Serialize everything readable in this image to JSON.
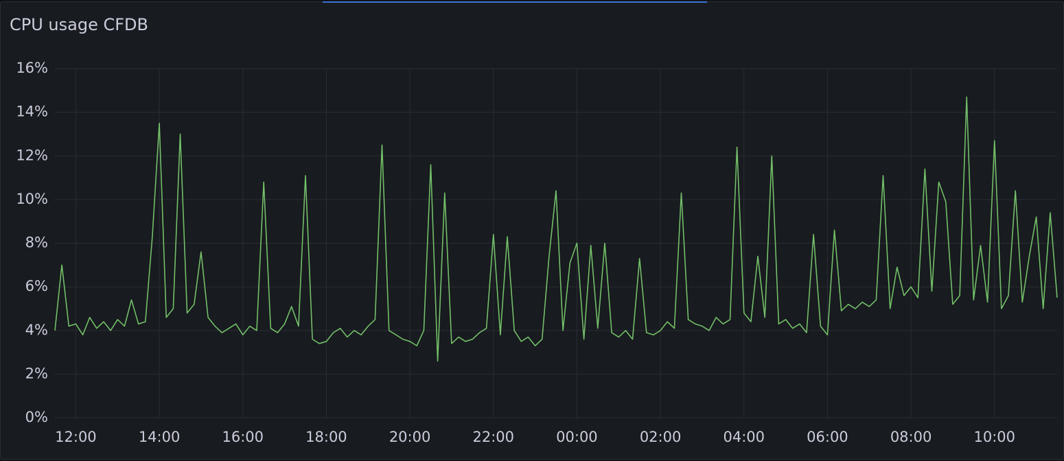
{
  "chart_data": {
    "type": "line",
    "title": "CPU usage CFDB",
    "x": [
      "11:30",
      "11:40",
      "11:50",
      "12:00",
      "12:10",
      "12:20",
      "12:30",
      "12:40",
      "12:50",
      "13:00",
      "13:10",
      "13:20",
      "13:30",
      "13:40",
      "13:50",
      "14:00",
      "14:10",
      "14:20",
      "14:30",
      "14:40",
      "14:50",
      "15:00",
      "15:10",
      "15:20",
      "15:30",
      "15:40",
      "15:50",
      "16:00",
      "16:10",
      "16:20",
      "16:30",
      "16:40",
      "16:50",
      "17:00",
      "17:10",
      "17:20",
      "17:30",
      "17:40",
      "17:50",
      "18:00",
      "18:10",
      "18:20",
      "18:30",
      "18:40",
      "18:50",
      "19:00",
      "19:10",
      "19:20",
      "19:30",
      "19:40",
      "19:50",
      "20:00",
      "20:10",
      "20:20",
      "20:30",
      "20:40",
      "20:50",
      "21:00",
      "21:10",
      "21:20",
      "21:30",
      "21:40",
      "21:50",
      "22:00",
      "22:10",
      "22:20",
      "22:30",
      "22:40",
      "22:50",
      "23:00",
      "23:10",
      "23:20",
      "23:30",
      "23:40",
      "23:50",
      "00:00",
      "00:10",
      "00:20",
      "00:30",
      "00:40",
      "00:50",
      "01:00",
      "01:10",
      "01:20",
      "01:30",
      "01:40",
      "01:50",
      "02:00",
      "02:10",
      "02:20",
      "02:30",
      "02:40",
      "02:50",
      "03:00",
      "03:10",
      "03:20",
      "03:30",
      "03:40",
      "03:50",
      "04:00",
      "04:10",
      "04:20",
      "04:30",
      "04:40",
      "04:50",
      "05:00",
      "05:10",
      "05:20",
      "05:30",
      "05:40",
      "05:50",
      "06:00",
      "06:10",
      "06:20",
      "06:30",
      "06:40",
      "06:50",
      "07:00",
      "07:10",
      "07:20",
      "07:30",
      "07:40",
      "07:50",
      "08:00",
      "08:10",
      "08:20",
      "08:30",
      "08:40",
      "08:50",
      "09:00",
      "09:10",
      "09:20",
      "09:30",
      "09:40",
      "09:50",
      "10:00",
      "10:10",
      "10:20",
      "10:30",
      "10:40",
      "10:50",
      "11:00",
      "11:10",
      "11:20",
      "11:30"
    ],
    "series": [
      {
        "name": "CPU usage",
        "color": "#73bf69",
        "values": [
          4.0,
          7.0,
          4.2,
          4.3,
          3.8,
          4.6,
          4.1,
          4.4,
          4.0,
          4.5,
          4.2,
          5.4,
          4.3,
          4.4,
          8.3,
          13.5,
          4.6,
          5.0,
          13.0,
          4.8,
          5.2,
          7.6,
          4.6,
          4.2,
          3.9,
          4.1,
          4.3,
          3.8,
          4.2,
          4.0,
          10.8,
          4.1,
          3.9,
          4.3,
          5.1,
          4.2,
          11.1,
          3.6,
          3.4,
          3.5,
          3.9,
          4.1,
          3.7,
          4.0,
          3.8,
          4.2,
          4.5,
          12.5,
          4.0,
          3.8,
          3.6,
          3.5,
          3.3,
          4.0,
          11.6,
          2.6,
          10.3,
          3.4,
          3.7,
          3.5,
          3.6,
          3.9,
          4.1,
          8.4,
          3.8,
          8.3,
          4.0,
          3.5,
          3.7,
          3.3,
          3.6,
          7.4,
          10.4,
          4.0,
          7.1,
          8.0,
          3.6,
          7.9,
          4.1,
          8.0,
          3.9,
          3.7,
          4.0,
          3.6,
          7.3,
          3.9,
          3.8,
          4.0,
          4.4,
          4.1,
          10.3,
          4.5,
          4.3,
          4.2,
          4.0,
          4.6,
          4.3,
          4.5,
          12.4,
          4.8,
          4.4,
          7.4,
          4.6,
          12.0,
          4.3,
          4.5,
          4.1,
          4.3,
          3.9,
          8.4,
          4.2,
          3.8,
          8.6,
          4.9,
          5.2,
          5.0,
          5.3,
          5.1,
          5.4,
          11.1,
          5.0,
          6.9,
          5.6,
          6.0,
          5.5,
          11.4,
          5.8,
          10.8,
          9.9,
          5.2,
          5.6,
          14.7,
          5.4,
          7.9,
          5.3,
          12.7,
          5.0,
          5.6,
          10.4,
          5.3,
          7.4,
          9.2,
          5.0,
          9.4,
          5.5
        ]
      }
    ],
    "xlim": [
      "11:30",
      "11:30"
    ],
    "xticks": [
      "12:00",
      "14:00",
      "16:00",
      "18:00",
      "20:00",
      "22:00",
      "00:00",
      "02:00",
      "04:00",
      "06:00",
      "08:00",
      "10:00"
    ],
    "ylim": [
      0,
      16
    ],
    "yticks": [
      {
        "value": 0,
        "label": "0%"
      },
      {
        "value": 2,
        "label": "2%"
      },
      {
        "value": 4,
        "label": "4%"
      },
      {
        "value": 6,
        "label": "6%"
      },
      {
        "value": 8,
        "label": "8%"
      },
      {
        "value": 10,
        "label": "10%"
      },
      {
        "value": 12,
        "label": "12%"
      },
      {
        "value": 14,
        "label": "14%"
      },
      {
        "value": 16,
        "label": "16%"
      }
    ],
    "grid": true
  }
}
